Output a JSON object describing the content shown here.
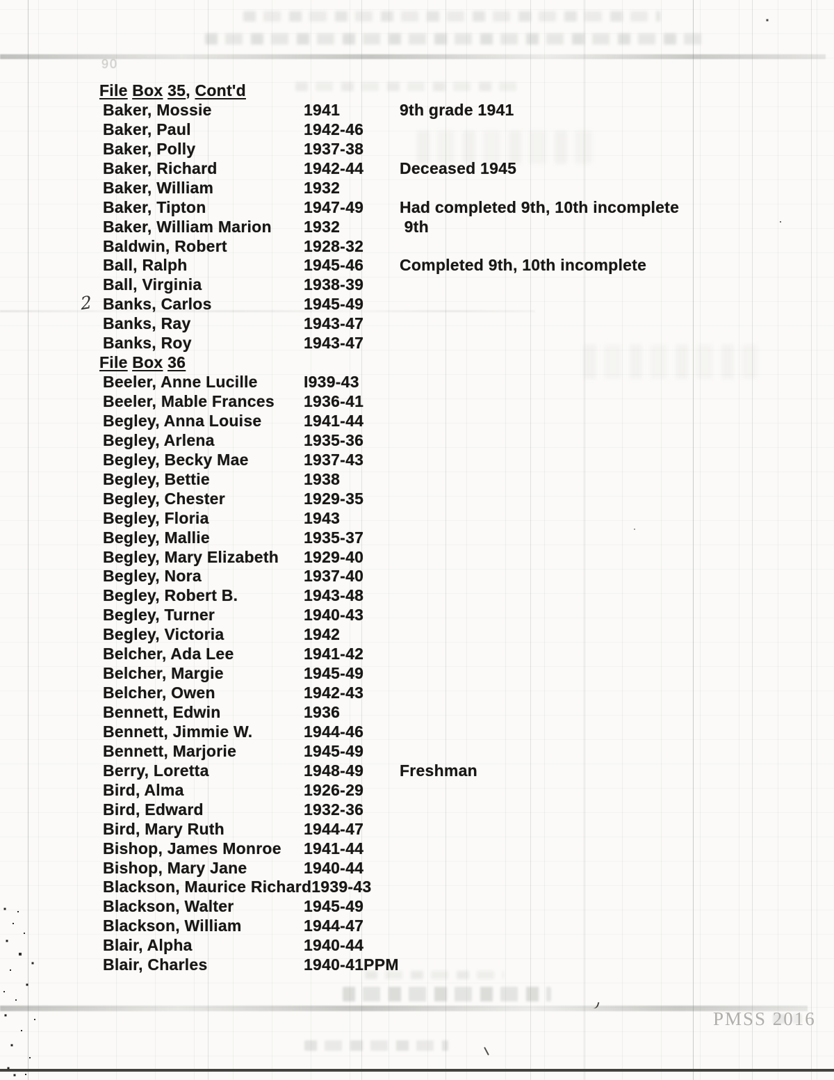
{
  "page": {
    "watermark": "PMSS 2016",
    "margin_marks": {
      "handwritten_note": "2",
      "faint_number": "90"
    },
    "colors": {
      "ink": "#181715",
      "paper": "#fbfaf8",
      "watermark_gray": "#b0aeab"
    },
    "rows": [
      {
        "kind": "heading",
        "parts": [
          {
            "text": "File",
            "u": true
          },
          {
            "text": " ",
            "u": false
          },
          {
            "text": "Box",
            "u": true
          },
          {
            "text": " ",
            "u": false
          },
          {
            "text": "35",
            "u": true
          },
          {
            "text": ", ",
            "u": false
          },
          {
            "text": "Cont'd",
            "u": true
          }
        ]
      },
      {
        "kind": "entry",
        "name": "Baker, Mossie",
        "years": "1941",
        "note": "9th grade 1941"
      },
      {
        "kind": "entry",
        "name": "Baker, Paul",
        "years": "1942-46",
        "note": ""
      },
      {
        "kind": "entry",
        "name": "Baker, Polly",
        "years": "1937-38",
        "note": ""
      },
      {
        "kind": "entry",
        "name": "Baker, Richard",
        "years": "1942-44",
        "note": "Deceased 1945"
      },
      {
        "kind": "entry",
        "name": "Baker, William",
        "years": "1932",
        "note": ""
      },
      {
        "kind": "entry",
        "name": "Baker, Tipton",
        "years": "1947-49",
        "note": "Had completed 9th, 10th incomplete"
      },
      {
        "kind": "entry",
        "name": "Baker, William Marion",
        "years": "1932",
        "note": " 9th"
      },
      {
        "kind": "entry",
        "name": "Baldwin, Robert",
        "years": "1928-32",
        "note": ""
      },
      {
        "kind": "entry",
        "name": "Ball, Ralph",
        "years": "1945-46",
        "note": "Completed 9th, 10th incomplete"
      },
      {
        "kind": "entry",
        "name": "Ball, Virginia",
        "years": "1938-39",
        "note": ""
      },
      {
        "kind": "entry",
        "name": "Banks, Carlos",
        "years": "1945-49",
        "note": ""
      },
      {
        "kind": "entry",
        "name": "Banks, Ray",
        "years": "1943-47",
        "note": ""
      },
      {
        "kind": "entry",
        "name": "Banks, Roy",
        "years": "1943-47",
        "note": ""
      },
      {
        "kind": "heading",
        "parts": [
          {
            "text": "File",
            "u": true
          },
          {
            "text": " ",
            "u": false
          },
          {
            "text": "Box",
            "u": true
          },
          {
            "text": " ",
            "u": false
          },
          {
            "text": "36",
            "u": true
          }
        ]
      },
      {
        "kind": "entry",
        "name": "Beeler, Anne Lucille",
        "years": "I939-43",
        "note": ""
      },
      {
        "kind": "entry",
        "name": "Beeler, Mable Frances",
        "years": "1936-41",
        "note": ""
      },
      {
        "kind": "entry",
        "name": "Begley, Anna Louise",
        "years": "1941-44",
        "note": ""
      },
      {
        "kind": "entry",
        "name": "Begley, Arlena",
        "years": "1935-36",
        "note": ""
      },
      {
        "kind": "entry",
        "name": "Begley, Becky Mae",
        "years": "1937-43",
        "note": ""
      },
      {
        "kind": "entry",
        "name": "Begley, Bettie",
        "years": "1938",
        "note": ""
      },
      {
        "kind": "entry",
        "name": "Begley, Chester",
        "years": "1929-35",
        "note": ""
      },
      {
        "kind": "entry",
        "name": "Begley, Floria",
        "years": "1943",
        "note": ""
      },
      {
        "kind": "entry",
        "name": "Begley, Mallie",
        "years": "1935-37",
        "note": ""
      },
      {
        "kind": "entry",
        "name": "Begley, Mary Elizabeth",
        "years": "1929-40",
        "note": ""
      },
      {
        "kind": "entry",
        "name": "Begley, Nora",
        "years": "1937-40",
        "note": ""
      },
      {
        "kind": "entry",
        "name": "Begley, Robert B.",
        "years": "1943-48",
        "note": ""
      },
      {
        "kind": "entry",
        "name": "Begley, Turner",
        "years": "1940-43",
        "note": ""
      },
      {
        "kind": "entry",
        "name": "Begley, Victoria",
        "years": "1942",
        "note": ""
      },
      {
        "kind": "entry",
        "name": "Belcher, Ada Lee",
        "years": "1941-42",
        "note": ""
      },
      {
        "kind": "entry",
        "name": "Belcher, Margie",
        "years": "1945-49",
        "note": ""
      },
      {
        "kind": "entry",
        "name": "Belcher, Owen",
        "years": "1942-43",
        "note": ""
      },
      {
        "kind": "entry",
        "name": "Bennett, Edwin",
        "years": "1936",
        "note": ""
      },
      {
        "kind": "entry",
        "name": "Bennett, Jimmie W.",
        "years": "1944-46",
        "note": ""
      },
      {
        "kind": "entry",
        "name": "Bennett, Marjorie",
        "years": "1945-49",
        "note": ""
      },
      {
        "kind": "entry",
        "name": "Berry, Loretta",
        "years": "1948-49",
        "note": "Freshman"
      },
      {
        "kind": "entry",
        "name": "Bird, Alma",
        "years": "1926-29",
        "note": ""
      },
      {
        "kind": "entry",
        "name": "Bird, Edward",
        "years": "1932-36",
        "note": ""
      },
      {
        "kind": "entry",
        "name": "Bird, Mary Ruth",
        "years": "1944-47",
        "note": ""
      },
      {
        "kind": "entry",
        "name": "Bishop, James Monroe",
        "years": "1941-44",
        "note": ""
      },
      {
        "kind": "entry",
        "name": "Bishop, Mary Jane",
        "years": "1940-44",
        "note": ""
      },
      {
        "kind": "entry",
        "name": "Blackson, Maurice Richard",
        "years": "1939-43",
        "note": "",
        "inline": true
      },
      {
        "kind": "entry",
        "name": "Blackson, Walter",
        "years": "1945-49",
        "note": ""
      },
      {
        "kind": "entry",
        "name": "Blackson, William",
        "years": "1944-47",
        "note": ""
      },
      {
        "kind": "entry",
        "name": "Blair, Alpha",
        "years": "1940-44",
        "note": ""
      },
      {
        "kind": "entry",
        "name": "Blair, Charles",
        "years": "1940-41PPM",
        "note": ""
      }
    ]
  }
}
